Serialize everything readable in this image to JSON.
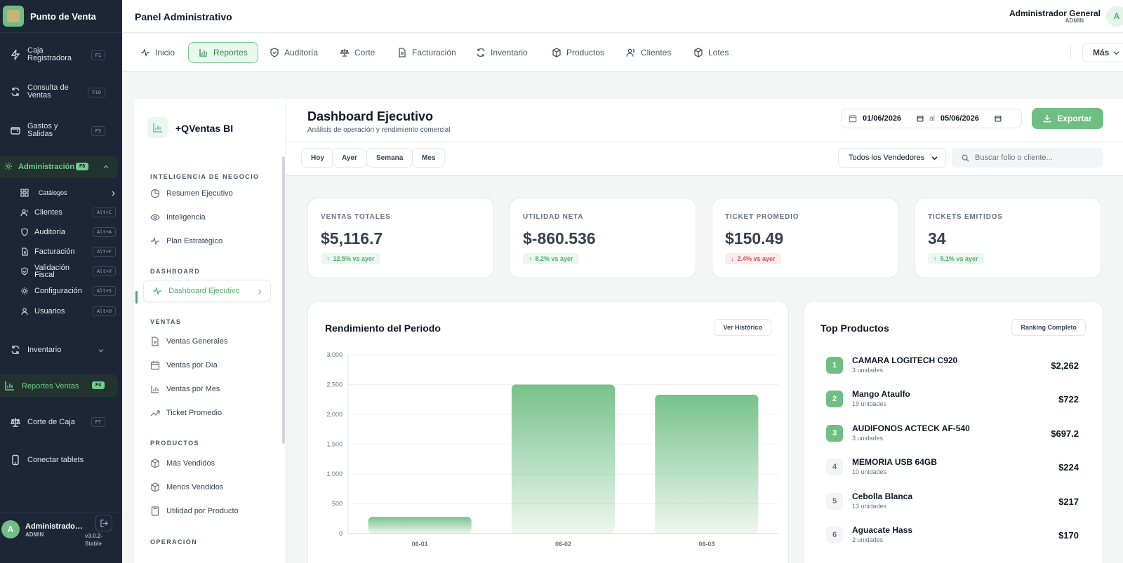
{
  "sidebar": {
    "brand": "Punto de Venta",
    "items": [
      {
        "label": "Caja Registradora",
        "key": "F1"
      },
      {
        "label": "Consulta de Ventas",
        "key": "F10"
      },
      {
        "label": "Gastos y Salidas",
        "key": "F3"
      }
    ],
    "admin": {
      "label": "Administración",
      "key": "F8"
    },
    "admin_sub": [
      {
        "label": "Catálogos",
        "key": ""
      },
      {
        "label": "Clientes",
        "key": "Alt+C"
      },
      {
        "label": "Auditoría",
        "key": "Alt+A"
      },
      {
        "label": "Facturación",
        "key": "Alt+F"
      },
      {
        "label": "Validación Fiscal",
        "key": "Alt+V"
      },
      {
        "label": "Configuración",
        "key": "Alt+S"
      },
      {
        "label": "Usuarios",
        "key": "Alt+U"
      }
    ],
    "inventario": "Inventario",
    "reportes": {
      "label": "Reportes Ventas",
      "key": "F4"
    },
    "corte": {
      "label": "Corte de Caja",
      "key": "F7"
    },
    "tablets": "Conectar tablets",
    "user": {
      "initial": "A",
      "name": "Administrador General",
      "role": "ADMIN",
      "version": "v3.0.2-Stable"
    }
  },
  "header": {
    "title": "Panel Administrativo",
    "user_name": "Administrador General",
    "user_role": "ADMIN",
    "user_initial": "A"
  },
  "tabs": [
    {
      "label": "Inicio"
    },
    {
      "label": "Reportes"
    },
    {
      "label": "Auditoría"
    },
    {
      "label": "Corte"
    },
    {
      "label": "Facturación"
    },
    {
      "label": "Inventario"
    },
    {
      "label": "Productos"
    },
    {
      "label": "Clientes"
    },
    {
      "label": "Lotes"
    }
  ],
  "tab_more": "Más",
  "bi": {
    "title": "+QVentas BI",
    "sections": {
      "negocio": "INTELIGENCIA DE NEGOCIO",
      "dashboard": "DASHBOARD",
      "ventas": "VENTAS",
      "productos": "PRODUCTOS",
      "operacion": "OPERACIÓN"
    },
    "negocio_items": [
      "Resumen Ejecutivo",
      "Inteligencia",
      "Plan Estratégico"
    ],
    "dashboard_item": "Dashboard Ejecutivo",
    "ventas_items": [
      "Ventas Generales",
      "Ventas por Día",
      "Ventas por Mes",
      "Ticket Promedio"
    ],
    "productos_items": [
      "Más Vendidos",
      "Menos Vendidos",
      "Utilidad por Producto"
    ]
  },
  "dashboard": {
    "title": "Dashboard Ejecutivo",
    "subtitle": "Análisis de operación y rendimiento comercial",
    "date_from": "01/06/2026",
    "date_sep": "al",
    "date_to": "05/06/2026",
    "export": "Exportar",
    "chips": [
      "Hoy",
      "Ayer",
      "Semana",
      "Mes"
    ],
    "vendor_select": "Todos los Vendedores",
    "search_placeholder": "Buscar folio o cliente..."
  },
  "kpis": [
    {
      "label": "VENTAS TOTALES",
      "value": "$5,116.7",
      "delta": "12.5% vs ayer",
      "trend": "up"
    },
    {
      "label": "UTILIDAD NETA",
      "value": "$-860.536",
      "delta": "8.2% vs ayer",
      "trend": "up"
    },
    {
      "label": "TICKET PROMEDIO",
      "value": "$150.49",
      "delta": "2.4% vs ayer",
      "trend": "down"
    },
    {
      "label": "TICKETS EMITIDOS",
      "value": "34",
      "delta": "5.1% vs ayer",
      "trend": "up"
    }
  ],
  "performance": {
    "title": "Rendimiento del Periodo",
    "button": "Ver Histórico"
  },
  "chart_data": {
    "type": "bar",
    "categories": [
      "06-01",
      "06-02",
      "06-03"
    ],
    "values": [
      280,
      2500,
      2330
    ],
    "ylim": [
      0,
      3000
    ],
    "yticks": [
      "0",
      "500",
      "1,000",
      "1,500",
      "2,000",
      "2,500",
      "3,000"
    ],
    "grid": true,
    "color": "#6fbf83"
  },
  "top_products": {
    "title": "Top Productos",
    "button": "Ranking Completo",
    "items": [
      {
        "rank": "1",
        "name": "CAMARA LOGITECH C920",
        "units": "3 unidades",
        "value": "$2,262"
      },
      {
        "rank": "2",
        "name": "Mango Ataulfo",
        "units": "19 unidades",
        "value": "$722"
      },
      {
        "rank": "3",
        "name": "AUDIFONOS ACTECK AF-540",
        "units": "3 unidades",
        "value": "$697.2"
      },
      {
        "rank": "4",
        "name": "MEMORIA USB 64GB",
        "units": "10 unidades",
        "value": "$224"
      },
      {
        "rank": "5",
        "name": "Cebolla Blanca",
        "units": "13 unidades",
        "value": "$217"
      },
      {
        "rank": "6",
        "name": "Aguacate Hass",
        "units": "2 unidades",
        "value": "$170"
      }
    ]
  }
}
